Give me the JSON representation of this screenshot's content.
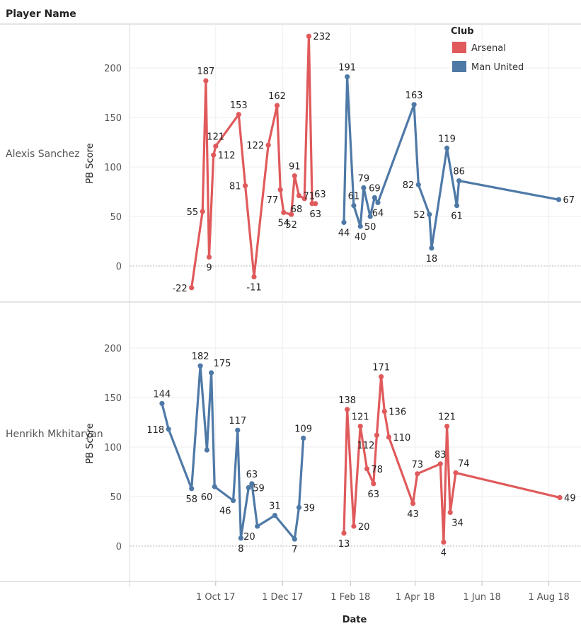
{
  "header": {
    "row_field_label": "Player Name"
  },
  "legend": {
    "title": "Club",
    "items": [
      {
        "label": "Arsenal",
        "color": "#e05a5c"
      },
      {
        "label": "Man United",
        "color": "#4e79a7"
      }
    ]
  },
  "chart_data": {
    "type": "line",
    "xlabel": "Date",
    "ylabel": "PB Score",
    "ylim": [
      -30,
      240
    ],
    "y_ticks": [
      0,
      50,
      100,
      150,
      200
    ],
    "x_ticks": [
      "1 Oct 17",
      "1 Dec 17",
      "1 Feb 18",
      "1 Apr 18",
      "1 Jun 18",
      "1 Aug 18"
    ],
    "grid": true,
    "legend_position": "top-right",
    "panels": [
      {
        "player": "Alexis Sanchez",
        "series": [
          {
            "club": "Arsenal",
            "points": [
              {
                "x": "2017-09-09",
                "y": -22
              },
              {
                "x": "2017-09-19",
                "y": 55
              },
              {
                "x": "2017-09-22",
                "y": 187
              },
              {
                "x": "2017-09-25",
                "y": 9
              },
              {
                "x": "2017-09-29",
                "y": 112
              },
              {
                "x": "2017-10-01",
                "y": 121
              },
              {
                "x": "2017-10-22",
                "y": 153
              },
              {
                "x": "2017-10-28",
                "y": 81
              },
              {
                "x": "2017-11-05",
                "y": -11
              },
              {
                "x": "2017-11-18",
                "y": 122
              },
              {
                "x": "2017-11-26",
                "y": 162
              },
              {
                "x": "2017-11-29",
                "y": 77
              },
              {
                "x": "2017-12-02",
                "y": 54
              },
              {
                "x": "2017-12-09",
                "y": 52
              },
              {
                "x": "2017-12-12",
                "y": 91
              },
              {
                "x": "2017-12-16",
                "y": 71
              },
              {
                "x": "2017-12-21",
                "y": 68
              },
              {
                "x": "2017-12-25",
                "y": 232
              },
              {
                "x": "2017-12-28",
                "y": 63
              },
              {
                "x": "2017-12-31",
                "y": 63
              }
            ]
          },
          {
            "club": "Man United",
            "points": [
              {
                "x": "2018-01-26",
                "y": 44
              },
              {
                "x": "2018-01-29",
                "y": 191
              },
              {
                "x": "2018-02-04",
                "y": 61
              },
              {
                "x": "2018-02-10",
                "y": 40
              },
              {
                "x": "2018-02-13",
                "y": 79
              },
              {
                "x": "2018-02-19",
                "y": 50
              },
              {
                "x": "2018-02-23",
                "y": 69
              },
              {
                "x": "2018-02-26",
                "y": 64
              },
              {
                "x": "2018-03-31",
                "y": 163
              },
              {
                "x": "2018-04-04",
                "y": 82
              },
              {
                "x": "2018-04-14",
                "y": 52
              },
              {
                "x": "2018-04-16",
                "y": 18
              },
              {
                "x": "2018-04-30",
                "y": 119
              },
              {
                "x": "2018-05-09",
                "y": 61
              },
              {
                "x": "2018-05-11",
                "y": 86
              },
              {
                "x": "2018-08-10",
                "y": 67
              }
            ]
          }
        ],
        "labels": [
          {
            "x": "2017-09-09",
            "y": -22,
            "text": "-22",
            "pos": "left"
          },
          {
            "x": "2017-09-19",
            "y": 55,
            "text": "55",
            "pos": "left"
          },
          {
            "x": "2017-09-22",
            "y": 187,
            "text": "187",
            "pos": "above"
          },
          {
            "x": "2017-09-25",
            "y": 9,
            "text": "9",
            "pos": "below"
          },
          {
            "x": "2017-09-29",
            "y": 112,
            "text": "112",
            "pos": "right"
          },
          {
            "x": "2017-10-01",
            "y": 121,
            "text": "121",
            "pos": "above"
          },
          {
            "x": "2017-10-22",
            "y": 153,
            "text": "153",
            "pos": "above"
          },
          {
            "x": "2017-10-28",
            "y": 81,
            "text": "81",
            "pos": "left"
          },
          {
            "x": "2017-11-05",
            "y": -11,
            "text": "-11",
            "pos": "below"
          },
          {
            "x": "2017-11-18",
            "y": 122,
            "text": "122",
            "pos": "left"
          },
          {
            "x": "2017-11-26",
            "y": 162,
            "text": "162",
            "pos": "above"
          },
          {
            "x": "2017-11-29",
            "y": 77,
            "text": "77",
            "pos": "belowleft"
          },
          {
            "x": "2017-12-02",
            "y": 54,
            "text": "54",
            "pos": "below"
          },
          {
            "x": "2017-12-09",
            "y": 52,
            "text": "52",
            "pos": "below"
          },
          {
            "x": "2017-12-12",
            "y": 91,
            "text": "91",
            "pos": "above"
          },
          {
            "x": "2017-12-16",
            "y": 71,
            "text": "71",
            "pos": "right"
          },
          {
            "x": "2017-12-21",
            "y": 68,
            "text": "68",
            "pos": "belowleft"
          },
          {
            "x": "2017-12-25",
            "y": 232,
            "text": "232",
            "pos": "right"
          },
          {
            "x": "2017-12-28",
            "y": 63,
            "text": "63",
            "pos": "aboveright"
          },
          {
            "x": "2017-12-31",
            "y": 63,
            "text": "63",
            "pos": "below"
          },
          {
            "x": "2018-01-26",
            "y": 44,
            "text": "44",
            "pos": "below"
          },
          {
            "x": "2018-01-29",
            "y": 191,
            "text": "191",
            "pos": "above"
          },
          {
            "x": "2018-02-04",
            "y": 61,
            "text": "61",
            "pos": "above"
          },
          {
            "x": "2018-02-10",
            "y": 40,
            "text": "40",
            "pos": "below"
          },
          {
            "x": "2018-02-13",
            "y": 79,
            "text": "79",
            "pos": "above"
          },
          {
            "x": "2018-02-19",
            "y": 50,
            "text": "50",
            "pos": "below"
          },
          {
            "x": "2018-02-23",
            "y": 69,
            "text": "69",
            "pos": "above"
          },
          {
            "x": "2018-02-26",
            "y": 64,
            "text": "64",
            "pos": "below"
          },
          {
            "x": "2018-03-31",
            "y": 163,
            "text": "163",
            "pos": "above"
          },
          {
            "x": "2018-04-04",
            "y": 82,
            "text": "82",
            "pos": "left"
          },
          {
            "x": "2018-04-14",
            "y": 52,
            "text": "52",
            "pos": "left"
          },
          {
            "x": "2018-04-16",
            "y": 18,
            "text": "18",
            "pos": "below"
          },
          {
            "x": "2018-04-30",
            "y": 119,
            "text": "119",
            "pos": "above"
          },
          {
            "x": "2018-05-09",
            "y": 61,
            "text": "61",
            "pos": "below"
          },
          {
            "x": "2018-05-11",
            "y": 86,
            "text": "86",
            "pos": "above"
          },
          {
            "x": "2018-08-10",
            "y": 67,
            "text": "67",
            "pos": "right"
          }
        ]
      },
      {
        "player": "Henrikh Mkhitaryan",
        "series": [
          {
            "club": "Man United",
            "points": [
              {
                "x": "2017-08-13",
                "y": 144
              },
              {
                "x": "2017-08-19",
                "y": 118
              },
              {
                "x": "2017-09-09",
                "y": 58
              },
              {
                "x": "2017-09-17",
                "y": 182
              },
              {
                "x": "2017-09-23",
                "y": 97
              },
              {
                "x": "2017-09-27",
                "y": 175
              },
              {
                "x": "2017-09-30",
                "y": 60
              },
              {
                "x": "2017-10-17",
                "y": 46
              },
              {
                "x": "2017-10-21",
                "y": 117
              },
              {
                "x": "2017-10-24",
                "y": 8
              },
              {
                "x": "2017-10-31",
                "y": 59
              },
              {
                "x": "2017-11-03",
                "y": 63
              },
              {
                "x": "2017-11-08",
                "y": 20
              },
              {
                "x": "2017-11-24",
                "y": 31
              },
              {
                "x": "2017-12-12",
                "y": 7
              },
              {
                "x": "2017-12-16",
                "y": 39
              },
              {
                "x": "2017-12-20",
                "y": 109
              }
            ]
          },
          {
            "club": "Arsenal",
            "points": [
              {
                "x": "2018-01-26",
                "y": 13
              },
              {
                "x": "2018-01-29",
                "y": 138
              },
              {
                "x": "2018-02-04",
                "y": 20
              },
              {
                "x": "2018-02-10",
                "y": 121
              },
              {
                "x": "2018-02-16",
                "y": 78
              },
              {
                "x": "2018-02-22",
                "y": 63
              },
              {
                "x": "2018-02-25",
                "y": 112
              },
              {
                "x": "2018-03-01",
                "y": 171
              },
              {
                "x": "2018-03-04",
                "y": 136
              },
              {
                "x": "2018-03-08",
                "y": 110
              },
              {
                "x": "2018-03-30",
                "y": 43
              },
              {
                "x": "2018-04-03",
                "y": 73
              },
              {
                "x": "2018-04-24",
                "y": 83
              },
              {
                "x": "2018-04-27",
                "y": 4
              },
              {
                "x": "2018-04-30",
                "y": 121
              },
              {
                "x": "2018-05-03",
                "y": 34
              },
              {
                "x": "2018-05-08",
                "y": 74
              },
              {
                "x": "2018-08-11",
                "y": 49
              }
            ]
          }
        ],
        "labels": [
          {
            "x": "2017-08-13",
            "y": 144,
            "text": "144",
            "pos": "above"
          },
          {
            "x": "2017-08-19",
            "y": 118,
            "text": "118",
            "pos": "left"
          },
          {
            "x": "2017-09-09",
            "y": 58,
            "text": "58",
            "pos": "below"
          },
          {
            "x": "2017-09-17",
            "y": 182,
            "text": "182",
            "pos": "above"
          },
          {
            "x": "2017-09-27",
            "y": 175,
            "text": "175",
            "pos": "aboveright"
          },
          {
            "x": "2017-09-30",
            "y": 60,
            "text": "60",
            "pos": "belowleft"
          },
          {
            "x": "2017-10-17",
            "y": 46,
            "text": "46",
            "pos": "belowleft"
          },
          {
            "x": "2017-10-21",
            "y": 117,
            "text": "117",
            "pos": "above"
          },
          {
            "x": "2017-10-24",
            "y": 8,
            "text": "8",
            "pos": "below"
          },
          {
            "x": "2017-10-31",
            "y": 59,
            "text": "59",
            "pos": "right"
          },
          {
            "x": "2017-11-03",
            "y": 63,
            "text": "63",
            "pos": "above"
          },
          {
            "x": "2017-11-08",
            "y": 20,
            "text": "20",
            "pos": "belowleft"
          },
          {
            "x": "2017-11-24",
            "y": 31,
            "text": "31",
            "pos": "above"
          },
          {
            "x": "2017-12-12",
            "y": 7,
            "text": "7",
            "pos": "below"
          },
          {
            "x": "2017-12-16",
            "y": 39,
            "text": "39",
            "pos": "right"
          },
          {
            "x": "2017-12-20",
            "y": 109,
            "text": "109",
            "pos": "above"
          },
          {
            "x": "2018-01-26",
            "y": 13,
            "text": "13",
            "pos": "below"
          },
          {
            "x": "2018-01-29",
            "y": 138,
            "text": "138",
            "pos": "above"
          },
          {
            "x": "2018-02-04",
            "y": 20,
            "text": "20",
            "pos": "right"
          },
          {
            "x": "2018-02-10",
            "y": 121,
            "text": "121",
            "pos": "above"
          },
          {
            "x": "2018-02-16",
            "y": 78,
            "text": "78",
            "pos": "right"
          },
          {
            "x": "2018-02-22",
            "y": 63,
            "text": "63",
            "pos": "below"
          },
          {
            "x": "2018-02-25",
            "y": 112,
            "text": "112",
            "pos": "belowleft"
          },
          {
            "x": "2018-03-01",
            "y": 171,
            "text": "171",
            "pos": "above"
          },
          {
            "x": "2018-03-04",
            "y": 136,
            "text": "136",
            "pos": "right"
          },
          {
            "x": "2018-03-08",
            "y": 110,
            "text": "110",
            "pos": "right"
          },
          {
            "x": "2018-03-30",
            "y": 43,
            "text": "43",
            "pos": "below"
          },
          {
            "x": "2018-04-03",
            "y": 73,
            "text": "73",
            "pos": "above"
          },
          {
            "x": "2018-04-24",
            "y": 83,
            "text": "83",
            "pos": "above"
          },
          {
            "x": "2018-04-27",
            "y": 4,
            "text": "4",
            "pos": "below"
          },
          {
            "x": "2018-04-30",
            "y": 121,
            "text": "121",
            "pos": "above"
          },
          {
            "x": "2018-05-03",
            "y": 34,
            "text": "34",
            "pos": "belowright"
          },
          {
            "x": "2018-05-08",
            "y": 74,
            "text": "74",
            "pos": "aboveright"
          },
          {
            "x": "2018-08-11",
            "y": 49,
            "text": "49",
            "pos": "right"
          }
        ]
      }
    ]
  }
}
